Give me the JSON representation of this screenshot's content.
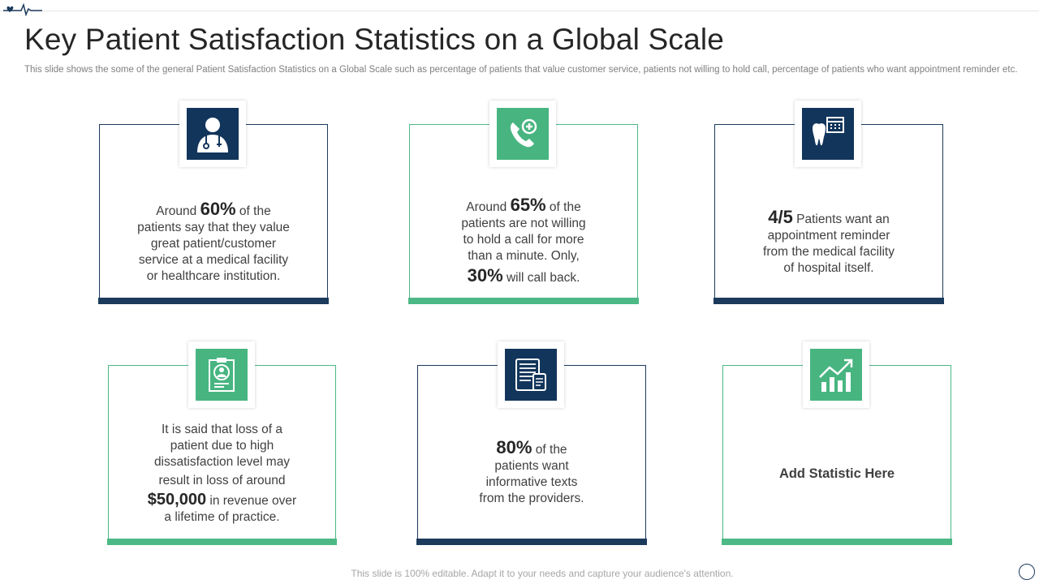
{
  "slide": {
    "title": "Key Patient Satisfaction Statistics on a Global Scale",
    "subtitle": "This slide shows the some of the general Patient Satisfaction Statistics on a Global Scale such as percentage of patients that value customer service, patients not willing to hold call, percentage of patients who want appointment reminder etc.",
    "footer": "This slide is 100% editable. Adapt it to your needs and capture your audience's attention."
  },
  "colors": {
    "navy": "#1b3a5c",
    "green": "#4cb886"
  },
  "cards": [
    {
      "icon": "doctor-icon",
      "lines": [
        {
          "pre": "Around ",
          "big": "60%",
          "post": "  of the"
        },
        {
          "text": "patients say that they value"
        },
        {
          "text": "great patient/customer"
        },
        {
          "text": "service at a medical facility"
        },
        {
          "text": "or healthcare institution."
        }
      ]
    },
    {
      "icon": "phone-call-icon",
      "lines": [
        {
          "pre": "Around ",
          "big": "65%",
          "post": "  of the"
        },
        {
          "text": "patients are not willing"
        },
        {
          "text": "to hold a call for more"
        },
        {
          "text": "than a minute.  Only,"
        },
        {
          "pre": "",
          "big": "30%",
          "post": "  will call back."
        }
      ]
    },
    {
      "icon": "tooth-calendar-icon",
      "lines": [
        {
          "pre": "",
          "big": "4/5",
          "post": " Patients want an"
        },
        {
          "text": "appointment reminder"
        },
        {
          "text": "from the medical facility"
        },
        {
          "text": "of hospital itself."
        }
      ]
    },
    {
      "icon": "patient-file-icon",
      "lines": [
        {
          "text": "It is said that loss of a"
        },
        {
          "text": "patient due to high"
        },
        {
          "text": "dissatisfaction level may"
        },
        {
          "text": "result in loss of around"
        },
        {
          "pre": "",
          "big": "$50,000",
          "post": " in revenue  over"
        },
        {
          "text": "a lifetime of practice."
        }
      ]
    },
    {
      "icon": "devices-icon",
      "lines": [
        {
          "pre": "",
          "big": "80%",
          "post": "  of the"
        },
        {
          "text": "patients want"
        },
        {
          "text": "informative texts"
        },
        {
          "text": "from the providers."
        }
      ]
    },
    {
      "icon": "growth-chart-icon",
      "add_label": "Add Statistic Here"
    }
  ]
}
